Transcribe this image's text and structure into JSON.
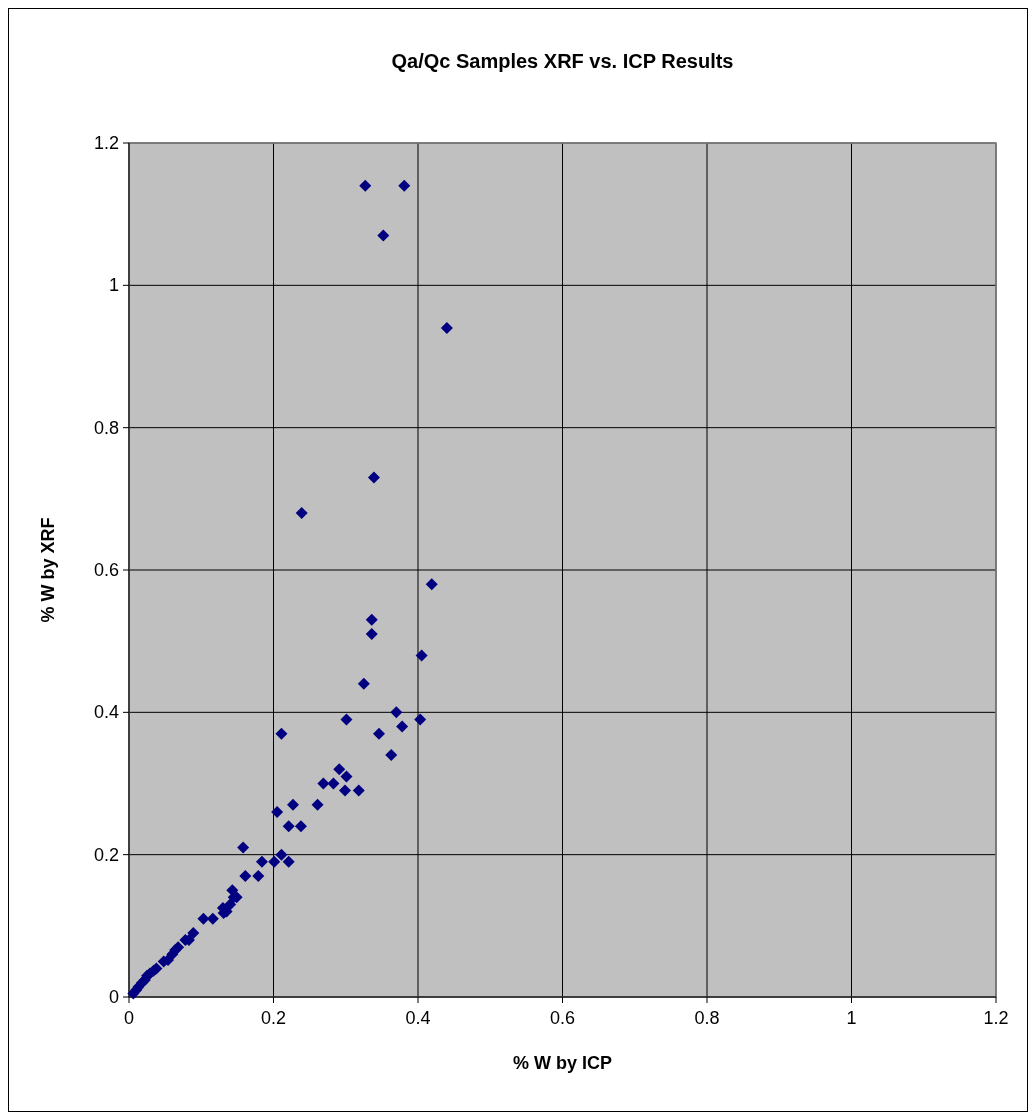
{
  "chart_data": {
    "type": "scatter",
    "title": "Qa/Qc Samples XRF vs. ICP Results",
    "xlabel": "% W by ICP",
    "ylabel": "% W by XRF",
    "xlim": [
      0,
      1.2
    ],
    "xticks": [
      0,
      0.2,
      0.4,
      0.6,
      0.8,
      1,
      1.2
    ],
    "ylim": [
      0,
      1.2
    ],
    "yticks": [
      0,
      0.2,
      0.4,
      0.6,
      0.8,
      1,
      1.2
    ],
    "grid": true,
    "marker": "diamond",
    "series": [
      {
        "color": "#000080",
        "x": [
          0.327,
          0.381,
          0.352,
          0.44,
          0.339,
          0.239,
          0.419,
          0.336,
          0.336,
          0.405,
          0.325,
          0.301,
          0.37,
          0.403,
          0.378,
          0.211,
          0.346,
          0.363,
          0.291,
          0.301,
          0.269,
          0.283,
          0.299,
          0.318,
          0.227,
          0.261,
          0.205,
          0.221,
          0.238,
          0.158,
          0.211,
          0.184,
          0.201,
          0.221,
          0.161,
          0.179,
          0.143,
          0.149,
          0.14,
          0.135,
          0.13,
          0.145,
          0.131,
          0.103,
          0.116,
          0.089,
          0.083,
          0.078,
          0.068,
          0.064,
          0.06,
          0.054,
          0.048,
          0.038,
          0.034,
          0.029,
          0.025,
          0.022,
          0.018,
          0.013,
          0.01,
          0.006
        ],
        "values": [
          1.14,
          1.14,
          1.07,
          0.94,
          0.73,
          0.68,
          0.58,
          0.53,
          0.51,
          0.48,
          0.44,
          0.39,
          0.4,
          0.39,
          0.38,
          0.37,
          0.37,
          0.34,
          0.32,
          0.31,
          0.3,
          0.3,
          0.29,
          0.29,
          0.27,
          0.27,
          0.26,
          0.24,
          0.24,
          0.21,
          0.2,
          0.19,
          0.19,
          0.19,
          0.17,
          0.17,
          0.15,
          0.14,
          0.13,
          0.12,
          0.125,
          0.14,
          0.118,
          0.11,
          0.11,
          0.09,
          0.08,
          0.08,
          0.07,
          0.066,
          0.06,
          0.052,
          0.05,
          0.04,
          0.037,
          0.033,
          0.03,
          0.024,
          0.02,
          0.014,
          0.01,
          0.005
        ]
      }
    ]
  }
}
